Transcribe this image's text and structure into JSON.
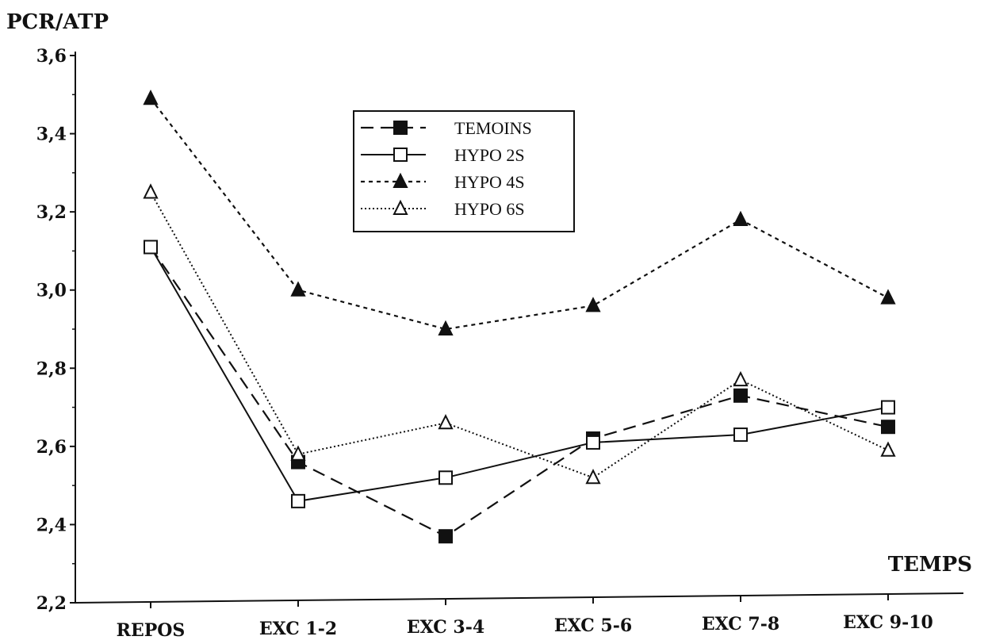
{
  "chart_data": {
    "type": "line",
    "ylabel": "PCR/ATP",
    "xlabel": "TEMPS",
    "categories": [
      "REPOS",
      "EXC 1-2",
      "EXC 3-4",
      "EXC 5-6",
      "EXC 7-8",
      "EXC 9-10"
    ],
    "ylim": [
      2.2,
      3.6
    ],
    "yticks": [
      "2,2",
      "2,4",
      "2,6",
      "2,8",
      "3,0",
      "3,2",
      "3,4",
      "3,6"
    ],
    "grid": false,
    "legend_position": "top-center",
    "series": [
      {
        "name": "TEMOINS",
        "values": [
          3.11,
          2.56,
          2.37,
          2.62,
          2.73,
          2.65
        ],
        "line_style": "dashed",
        "marker": "filled-square"
      },
      {
        "name": "HYPO 2S",
        "values": [
          3.11,
          2.46,
          2.52,
          2.61,
          2.63,
          2.7
        ],
        "line_style": "solid",
        "marker": "open-square"
      },
      {
        "name": "HYPO 4S",
        "values": [
          3.49,
          3.0,
          2.9,
          2.96,
          3.18,
          2.98
        ],
        "line_style": "short-dashed",
        "marker": "filled-triangle"
      },
      {
        "name": "HYPO 6S",
        "values": [
          3.25,
          2.58,
          2.66,
          2.52,
          2.77,
          2.59
        ],
        "line_style": "dotted",
        "marker": "open-triangle"
      }
    ]
  }
}
